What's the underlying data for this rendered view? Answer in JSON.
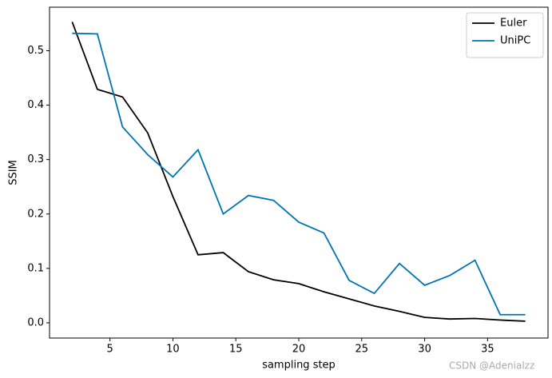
{
  "chart_data": {
    "type": "line",
    "x_label": "sampling step",
    "y_label": "SSIM",
    "x": [
      2,
      4,
      6,
      8,
      10,
      12,
      14,
      16,
      18,
      20,
      22,
      24,
      26,
      28,
      30,
      32,
      34,
      36,
      38
    ],
    "series": [
      {
        "name": "Euler",
        "color": "#000000",
        "values": [
          0.553,
          0.429,
          0.415,
          0.349,
          0.232,
          0.125,
          0.129,
          0.094,
          0.079,
          0.072,
          0.057,
          0.044,
          0.031,
          0.021,
          0.01,
          0.007,
          0.008,
          0.005,
          0.003
        ]
      },
      {
        "name": "UniPC",
        "color": "#0173b2",
        "values": [
          0.532,
          0.531,
          0.36,
          0.309,
          0.268,
          0.318,
          0.2,
          0.234,
          0.225,
          0.185,
          0.165,
          0.078,
          0.054,
          0.109,
          0.069,
          0.087,
          0.115,
          0.015,
          0.015
        ]
      }
    ],
    "xlim": [
      0.2,
      39.8
    ],
    "xticks": [
      5,
      10,
      15,
      20,
      25,
      30,
      35
    ],
    "ylim": [
      -0.028,
      0.58
    ],
    "yticks": [
      {
        "value": 0,
        "label": "0.0"
      },
      0.1,
      0.2,
      0.3,
      0.4,
      0.5
    ],
    "legend": "upper right",
    "grid": false,
    "watermark": "CSDN @Adenialzz"
  }
}
